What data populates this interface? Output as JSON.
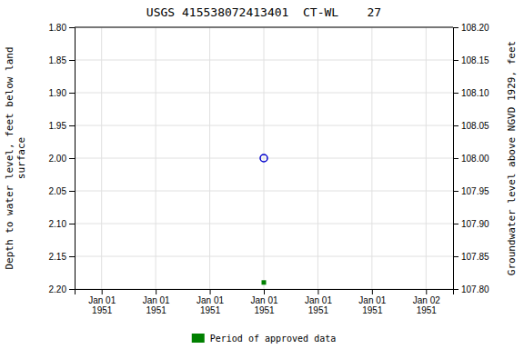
{
  "chart_data": {
    "type": "scatter",
    "title": "USGS 415538072413401  CT-WL    27",
    "y_label": "Depth to water level, feet below land\nsurface",
    "y2_label": "Groundwater level above NGVD 1929, feet",
    "categories": [
      "Jan 01\n1951",
      "Jan 01\n1951",
      "Jan 01\n1951",
      "Jan 01\n1951",
      "Jan 01\n1951",
      "Jan 01\n1951",
      "Jan 02\n1951"
    ],
    "series": [
      {
        "color": "#0000cc",
        "marker": "circle-open",
        "values": [
          null,
          null,
          null,
          2.0,
          null,
          null,
          null
        ]
      },
      {
        "name": "Period of approved data",
        "color": "#008000",
        "marker": "square",
        "values": [
          null,
          null,
          null,
          2.19,
          null,
          null,
          null
        ]
      }
    ],
    "ylim": [
      2.2,
      1.8
    ],
    "yticks": [
      {
        "value": 1.8,
        "label": "1.80"
      },
      {
        "value": 1.85,
        "label": "1.85"
      },
      {
        "value": 1.9,
        "label": "1.90"
      },
      {
        "value": 1.95,
        "label": "1.95"
      },
      {
        "value": 2.0,
        "label": "2.00"
      },
      {
        "value": 2.05,
        "label": "2.05"
      },
      {
        "value": 2.1,
        "label": "2.10"
      },
      {
        "value": 2.15,
        "label": "2.15"
      },
      {
        "value": 2.2,
        "label": "2.20"
      }
    ],
    "y2lim": [
      107.8,
      108.2
    ],
    "y2ticks": [
      {
        "value": 108.2,
        "label": "108.20"
      },
      {
        "value": 108.15,
        "label": "108.15"
      },
      {
        "value": 108.1,
        "label": "108.10"
      },
      {
        "value": 108.05,
        "label": "108.05"
      },
      {
        "value": 108.0,
        "label": "108.00"
      },
      {
        "value": 107.95,
        "label": "107.95"
      },
      {
        "value": 107.9,
        "label": "107.90"
      },
      {
        "value": 107.85,
        "label": "107.85"
      },
      {
        "value": 107.8,
        "label": "107.80"
      }
    ],
    "grid": true,
    "legend": "bottom"
  }
}
